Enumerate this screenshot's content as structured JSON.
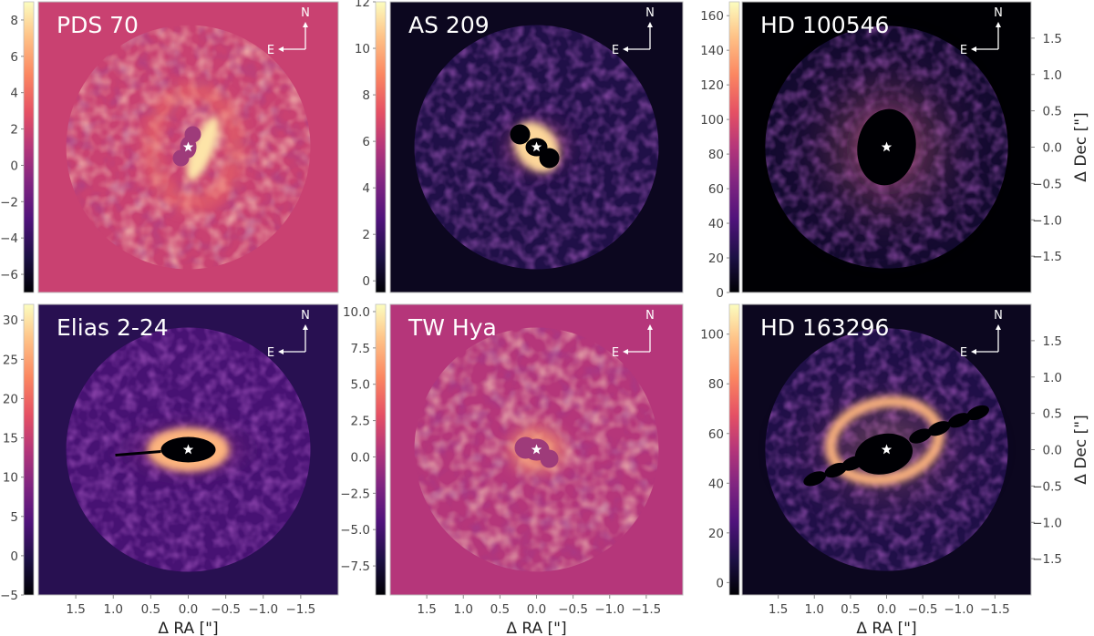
{
  "chart_data": [
    {
      "type": "heatmap",
      "title": "PDS 70",
      "colormap": "magma",
      "colorbar_ticks": [
        8,
        6,
        4,
        2,
        0,
        -2,
        -4,
        -6
      ],
      "colorbar_range": [
        -7,
        9
      ],
      "background_level": 0.55,
      "disk": {
        "type": "ring-bright-west",
        "peak": 0.95
      },
      "mask_color": "#9e3b7a"
    },
    {
      "type": "heatmap",
      "title": "AS 209",
      "colormap": "magma",
      "colorbar_ticks": [
        12,
        10,
        8,
        6,
        4,
        2,
        0
      ],
      "colorbar_range": [
        -0.5,
        12
      ],
      "background_level": 0.05,
      "disk": {
        "type": "compact",
        "peak": 1.0
      },
      "mask_color": "#000004"
    },
    {
      "type": "heatmap",
      "title": "HD 100546",
      "colormap": "magma",
      "colorbar_ticks": [
        160,
        140,
        120,
        100,
        80,
        60,
        40,
        20,
        0
      ],
      "colorbar_range": [
        0,
        168
      ],
      "background_level": 0.0,
      "disk": {
        "type": "bright-halo",
        "peak": 1.0
      },
      "mask_color": "#000004"
    },
    {
      "type": "heatmap",
      "title": "Elias 2-24",
      "colormap": "magma",
      "colorbar_ticks": [
        30,
        25,
        20,
        15,
        10,
        5,
        0,
        -5
      ],
      "colorbar_range": [
        -5,
        32
      ],
      "background_level": 0.15,
      "disk": {
        "type": "edge-on",
        "peak": 1.0
      },
      "mask_color": "#000004"
    },
    {
      "type": "heatmap",
      "title": "TW Hya",
      "colormap": "magma",
      "colorbar_ticks": [
        10.0,
        7.5,
        5.0,
        2.5,
        0.0,
        -2.5,
        -5.0,
        -7.5
      ],
      "colorbar_range": [
        -9.5,
        10.5
      ],
      "background_level": 0.5,
      "disk": {
        "type": "face-on-noise",
        "peak": 0.85
      },
      "mask_color": "#9e3b7a"
    },
    {
      "type": "heatmap",
      "title": "HD 163296",
      "colormap": "magma",
      "colorbar_ticks": [
        100,
        80,
        60,
        40,
        20,
        0
      ],
      "colorbar_range": [
        -5,
        112
      ],
      "background_level": 0.05,
      "disk": {
        "type": "inclined-ring",
        "peak": 1.0
      },
      "mask_color": "#000004"
    }
  ],
  "axes": {
    "xlabel": "Δ RA [\"]",
    "ylabel": "Δ Dec [\"]",
    "x_ticks": [
      "1.5",
      "1.0",
      "0.5",
      "0.0",
      "-0.5",
      "-1.0",
      "-1.5"
    ],
    "y_ticks": [
      "1.5",
      "1.0",
      "0.5",
      "0.0",
      "−0.5",
      "−1.0",
      "−1.5"
    ],
    "range_arcsec": 2.0
  },
  "compass": {
    "north": "N",
    "east": "E"
  }
}
